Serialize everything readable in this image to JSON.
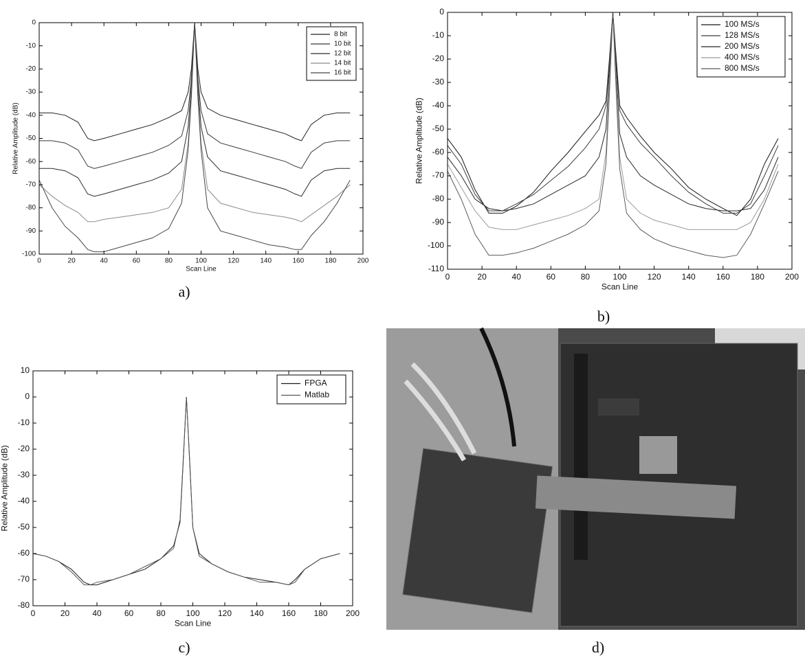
{
  "chart_data": [
    {
      "type": "line",
      "xlabel": "Scan Line",
      "ylabel": "Relative Amplitude (dB)",
      "xlim": [
        0,
        200
      ],
      "xticks": [
        0,
        20,
        40,
        60,
        80,
        100,
        120,
        140,
        160,
        180,
        200
      ],
      "ylim": [
        -100,
        0
      ],
      "yticks": [
        0,
        -10,
        -20,
        -30,
        -40,
        -50,
        -60,
        -70,
        -80,
        -90,
        -100
      ],
      "legend": "upper right",
      "x": [
        0,
        8,
        16,
        24,
        30,
        34,
        40,
        50,
        60,
        70,
        80,
        88,
        92,
        94,
        96,
        98,
        100,
        104,
        112,
        122,
        132,
        142,
        152,
        158,
        162,
        168,
        176,
        184,
        192
      ],
      "series": [
        {
          "name": "8 bit",
          "color": "#202020",
          "values": [
            -39,
            -39,
            -40,
            -43,
            -50,
            -51,
            -50,
            -48,
            -46,
            -44,
            -41,
            -38,
            -30,
            -20,
            0,
            -20,
            -30,
            -37,
            -40,
            -42,
            -44,
            -46,
            -48,
            -50,
            -51,
            -44,
            -40,
            -39,
            -39
          ]
        },
        {
          "name": "10 bit",
          "color": "#383838",
          "values": [
            -51,
            -51,
            -52,
            -55,
            -62,
            -63,
            -62,
            -60,
            -58,
            -56,
            -53,
            -49,
            -38,
            -24,
            0,
            -24,
            -38,
            -48,
            -52,
            -54,
            -56,
            -58,
            -60,
            -62,
            -63,
            -56,
            -52,
            -51,
            -51
          ]
        },
        {
          "name": "12 bit",
          "color": "#2a2a2a",
          "values": [
            -63,
            -63,
            -64,
            -67,
            -74,
            -75,
            -74,
            -72,
            -70,
            -68,
            -65,
            -60,
            -45,
            -27,
            0,
            -27,
            -45,
            -58,
            -64,
            -66,
            -68,
            -70,
            -72,
            -74,
            -75,
            -68,
            -64,
            -63,
            -63
          ]
        },
        {
          "name": "14 bit",
          "color": "#8a8a8a",
          "values": [
            -70,
            -75,
            -79,
            -82,
            -86,
            -86,
            -85,
            -84,
            -83,
            -82,
            -80,
            -72,
            -52,
            -30,
            0,
            -30,
            -52,
            -72,
            -78,
            -80,
            -82,
            -83,
            -84,
            -85,
            -86,
            -83,
            -79,
            -75,
            -70
          ]
        },
        {
          "name": "16 bit",
          "color": "#454545",
          "values": [
            -68,
            -80,
            -88,
            -93,
            -98,
            -99,
            -99,
            -97,
            -95,
            -93,
            -89,
            -78,
            -55,
            -32,
            0,
            -32,
            -55,
            -80,
            -90,
            -92,
            -94,
            -96,
            -97,
            -98,
            -98,
            -92,
            -86,
            -78,
            -68
          ]
        }
      ]
    },
    {
      "type": "line",
      "xlabel": "Scan Line",
      "ylabel": "Relative Amplitude (dB)",
      "xlim": [
        0,
        200
      ],
      "xticks": [
        0,
        20,
        40,
        60,
        80,
        100,
        120,
        140,
        160,
        180,
        200
      ],
      "ylim": [
        -110,
        0
      ],
      "yticks": [
        0,
        -10,
        -20,
        -30,
        -40,
        -50,
        -60,
        -70,
        -80,
        -90,
        -100,
        -110
      ],
      "legend": "upper right",
      "x": [
        0,
        8,
        16,
        24,
        32,
        40,
        50,
        60,
        70,
        80,
        88,
        92,
        94,
        96,
        98,
        100,
        104,
        112,
        120,
        130,
        140,
        150,
        160,
        168,
        176,
        184,
        192
      ],
      "series": [
        {
          "name": "100 MS/s",
          "color": "#151515",
          "values": [
            -54,
            -62,
            -76,
            -86,
            -86,
            -83,
            -77,
            -68,
            -60,
            -51,
            -44,
            -38,
            -20,
            0,
            -20,
            -40,
            -45,
            -53,
            -60,
            -67,
            -75,
            -80,
            -84,
            -87,
            -80,
            -65,
            -54
          ]
        },
        {
          "name": "128 MS/s",
          "color": "#3c3c3c",
          "values": [
            -57,
            -65,
            -78,
            -85,
            -85,
            -82,
            -78,
            -72,
            -66,
            -58,
            -50,
            -40,
            -22,
            0,
            -22,
            -42,
            -48,
            -56,
            -62,
            -70,
            -77,
            -82,
            -86,
            -86,
            -82,
            -70,
            -57
          ]
        },
        {
          "name": "200 MS/s",
          "color": "#262626",
          "values": [
            -62,
            -70,
            -80,
            -84,
            -85,
            -84,
            -82,
            -78,
            -74,
            -70,
            -62,
            -50,
            -25,
            0,
            -25,
            -52,
            -62,
            -70,
            -74,
            -78,
            -82,
            -84,
            -85,
            -85,
            -84,
            -76,
            -62
          ]
        },
        {
          "name": "400 MS/s",
          "color": "#9a9a9a",
          "values": [
            -65,
            -75,
            -85,
            -92,
            -93,
            -93,
            -91,
            -89,
            -87,
            -84,
            -80,
            -60,
            -30,
            0,
            -30,
            -62,
            -80,
            -86,
            -89,
            -91,
            -93,
            -93,
            -93,
            -93,
            -90,
            -80,
            -65
          ]
        },
        {
          "name": "800 MS/s",
          "color": "#5a5a5a",
          "values": [
            -68,
            -80,
            -95,
            -104,
            -104,
            -103,
            -101,
            -98,
            -95,
            -91,
            -85,
            -65,
            -35,
            0,
            -35,
            -67,
            -86,
            -93,
            -97,
            -100,
            -102,
            -104,
            -105,
            -104,
            -95,
            -82,
            -68
          ]
        }
      ]
    },
    {
      "type": "line",
      "xlabel": "Scan Line",
      "ylabel": "Relative Amplitude (dB)",
      "xlim": [
        0,
        200
      ],
      "xticks": [
        0,
        20,
        40,
        60,
        80,
        100,
        120,
        140,
        160,
        180,
        200
      ],
      "ylim": [
        -80,
        10
      ],
      "yticks": [
        10,
        0,
        -10,
        -20,
        -30,
        -40,
        -50,
        -60,
        -70,
        -80
      ],
      "legend": "upper right",
      "x": [
        0,
        8,
        16,
        24,
        32,
        36,
        40,
        50,
        60,
        70,
        80,
        88,
        92,
        94,
        96,
        98,
        100,
        104,
        112,
        122,
        132,
        142,
        152,
        160,
        164,
        170,
        180,
        192
      ],
      "series": [
        {
          "name": "FPGA",
          "color": "#1a1a1a",
          "values": [
            -60,
            -61,
            -63,
            -66,
            -71,
            -72,
            -72,
            -70,
            -68,
            -66,
            -62,
            -57,
            -48,
            -25,
            0,
            -25,
            -50,
            -60,
            -64,
            -67,
            -69,
            -70,
            -71,
            -72,
            -70,
            -66,
            -62,
            -60
          ]
        },
        {
          "name": "Matlab",
          "color": "#555555",
          "values": [
            -60,
            -61,
            -63,
            -67,
            -72,
            -72,
            -71,
            -70,
            -68,
            -65,
            -62,
            -58,
            -47,
            -24,
            0,
            -24,
            -50,
            -61,
            -64,
            -67,
            -69,
            -71,
            -71,
            -72,
            -71,
            -66,
            -62,
            -60
          ]
        }
      ]
    }
  ],
  "panel_labels": [
    "a)",
    "b)",
    "c)",
    "d)"
  ]
}
